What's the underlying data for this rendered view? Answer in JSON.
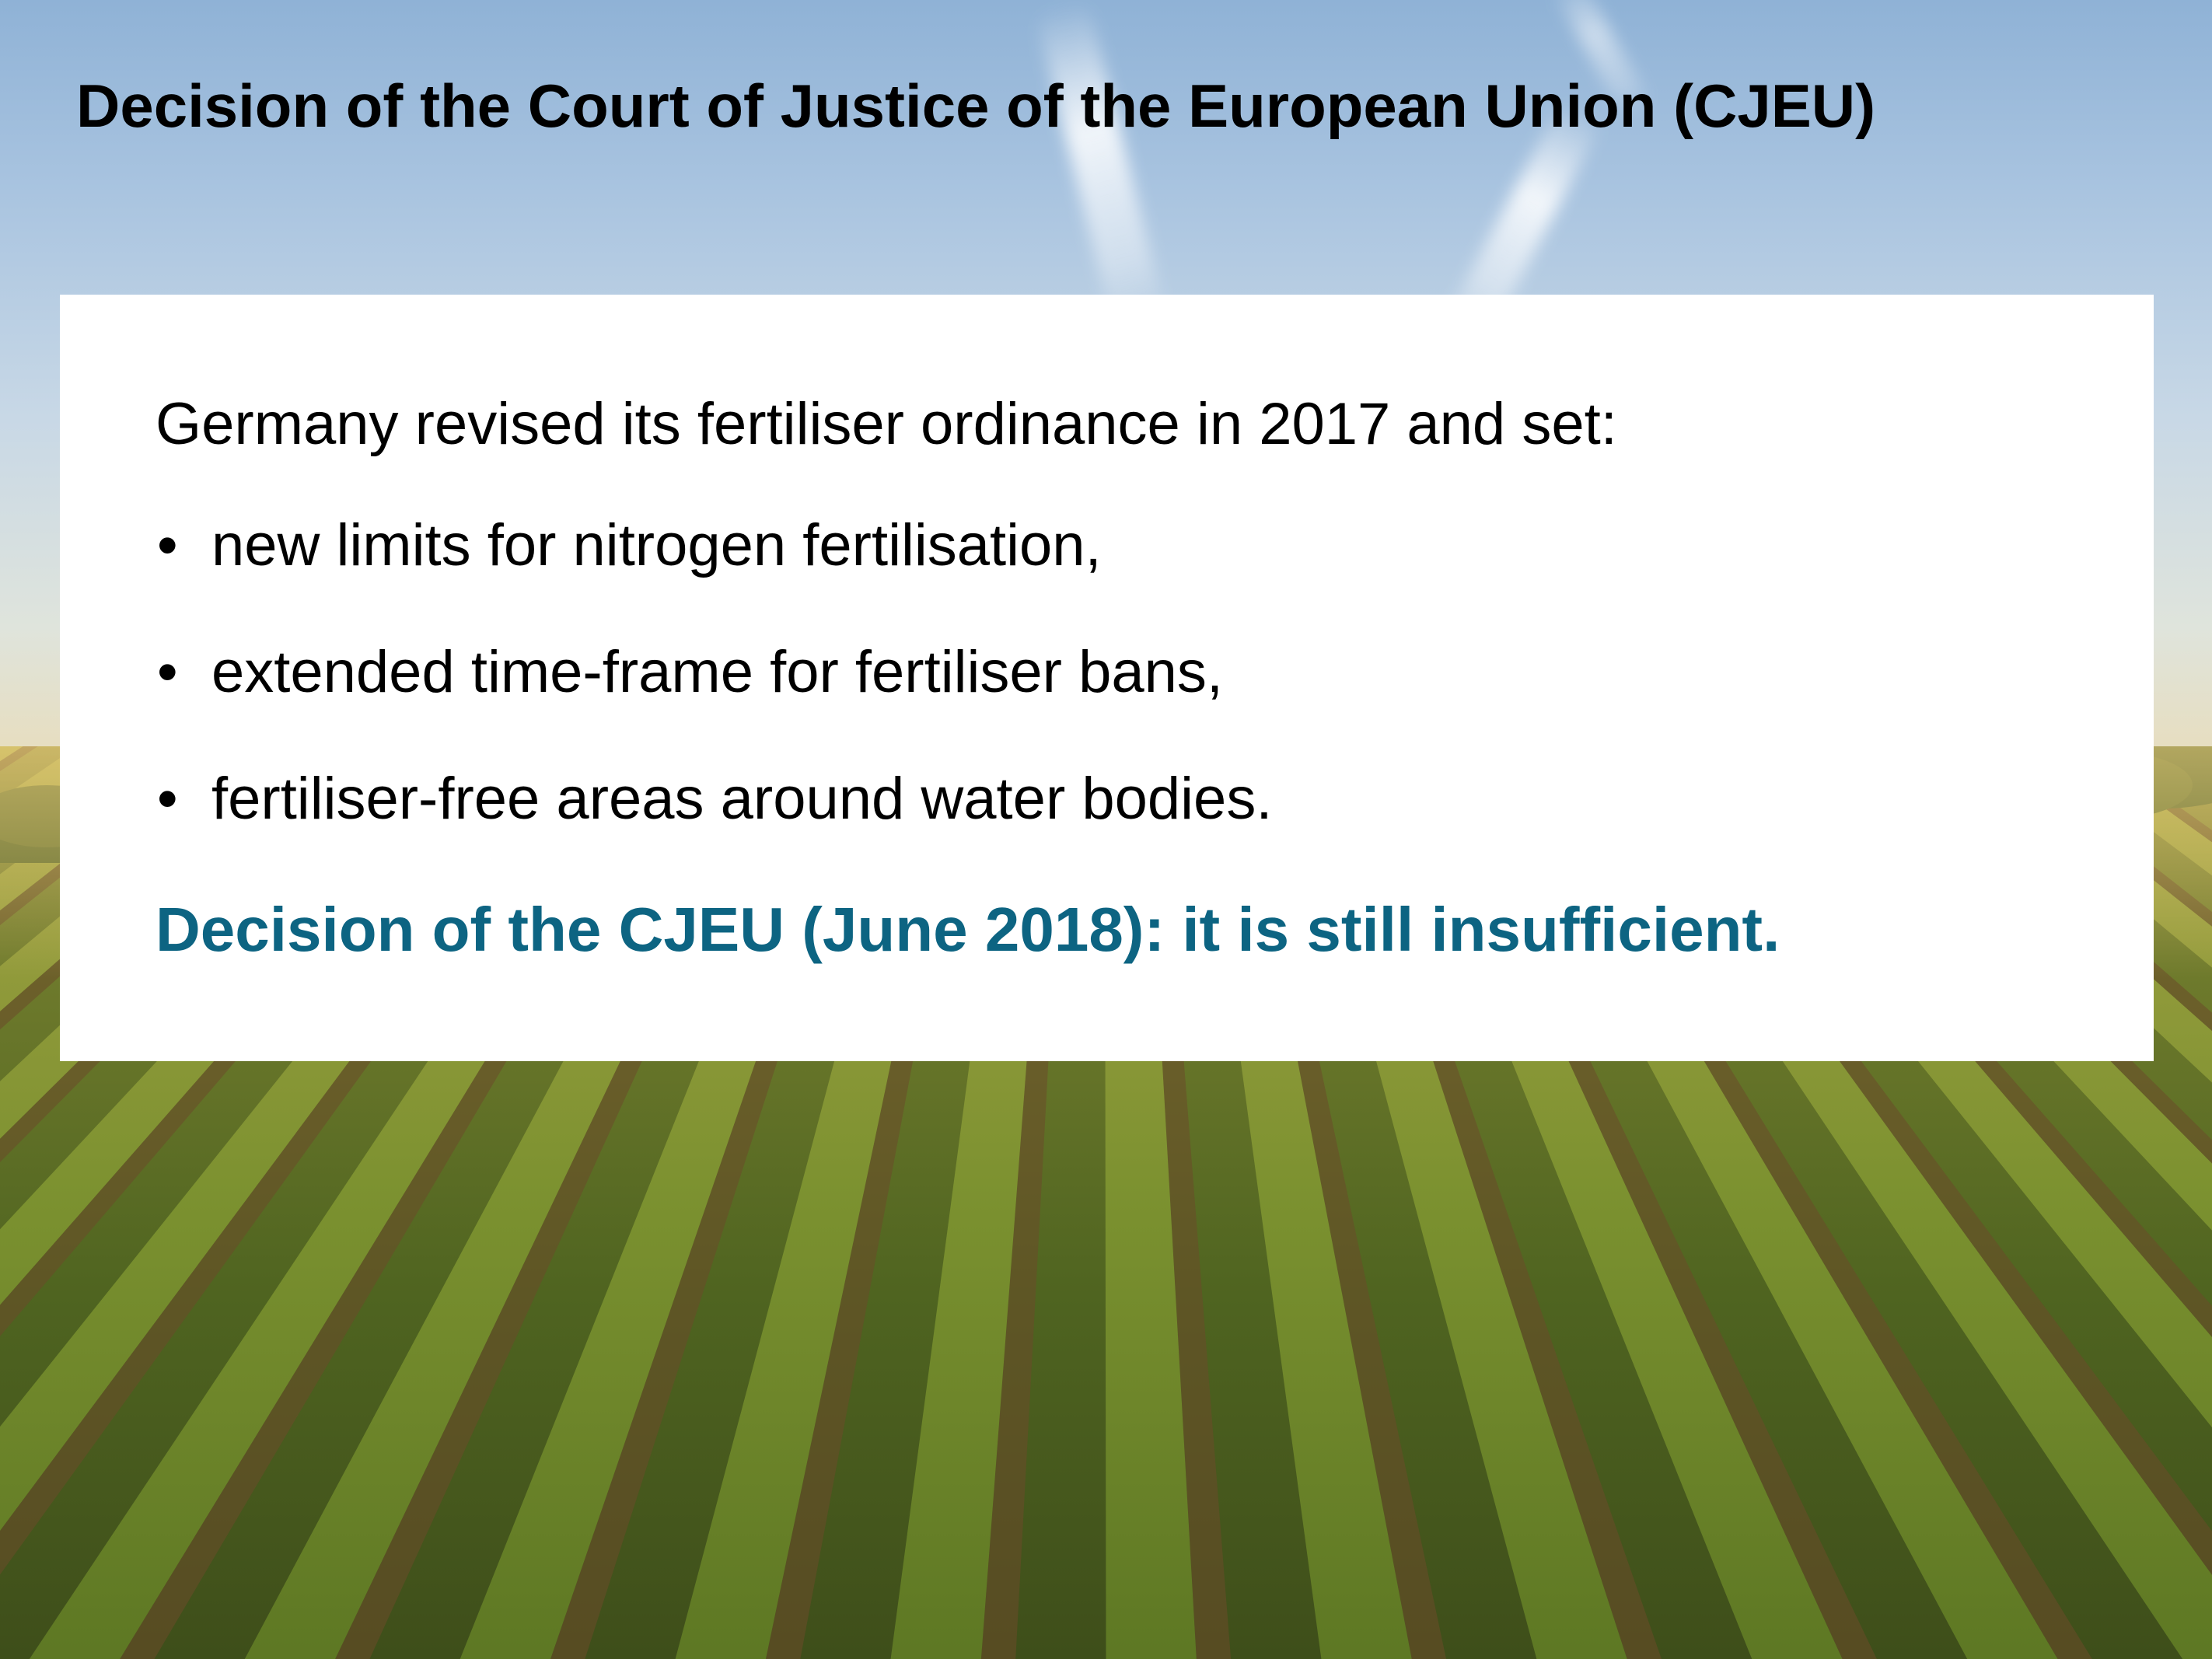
{
  "slide": {
    "title": "Decision of the Court of Justice of the European Union (CJEU)",
    "intro": "Germany revised its fertiliser ordinance in 2017 and set:",
    "bullet_char": "•",
    "bullets": [
      "new limits for nitrogen fertilisation,",
      "extended time-frame for fertiliser bans,",
      "fertiliser-free areas around water bodies."
    ],
    "decision": "Decision of the CJEU (June 2018): it is still insufficient."
  },
  "colors": {
    "title_text": "#000000",
    "body_text": "#000000",
    "highlight_text": "#0d6482",
    "content_box": "#ffffff",
    "sky": "#a9c4e0",
    "field_green": "#6f7f2a",
    "field_soil": "#6b4a2a"
  },
  "background": {
    "scene": "crop-field-rows-under-sky"
  }
}
